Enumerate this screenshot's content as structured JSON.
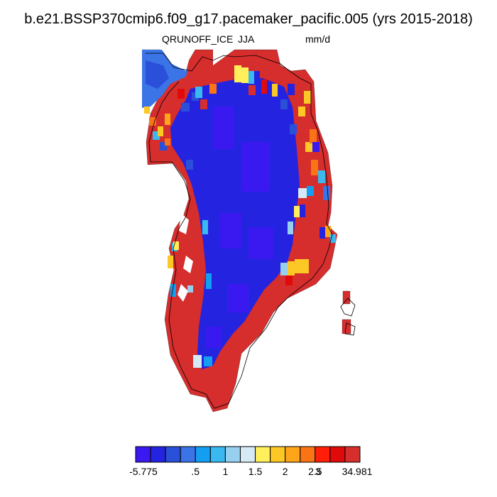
{
  "title": "b.e21.BSSP370cmip6.f09_g17.pacemaker_pacific.005 (yrs 2015-2018)",
  "subtitle": {
    "left": "QRUNOFF_ICE",
    "center": "JJA",
    "right": "mm/d"
  },
  "colorbar": {
    "colors": [
      "#3a19f0",
      "#2424e0",
      "#2a4fd8",
      "#3a74e6",
      "#149ef2",
      "#3ab8f0",
      "#96d0ee",
      "#d6eaf6",
      "#ffef5a",
      "#fcc825",
      "#ffa51a",
      "#fa7415",
      "#ff1e0a",
      "#e00a0a",
      "#d62d2d"
    ],
    "tick_labels": [
      "-5.775",
      ".5",
      "1",
      "1.5",
      "2",
      "2.5",
      "3",
      "34.981"
    ]
  },
  "colors": {
    "land_outline": "#000000",
    "cell_edge": "#1a1a1a"
  }
}
